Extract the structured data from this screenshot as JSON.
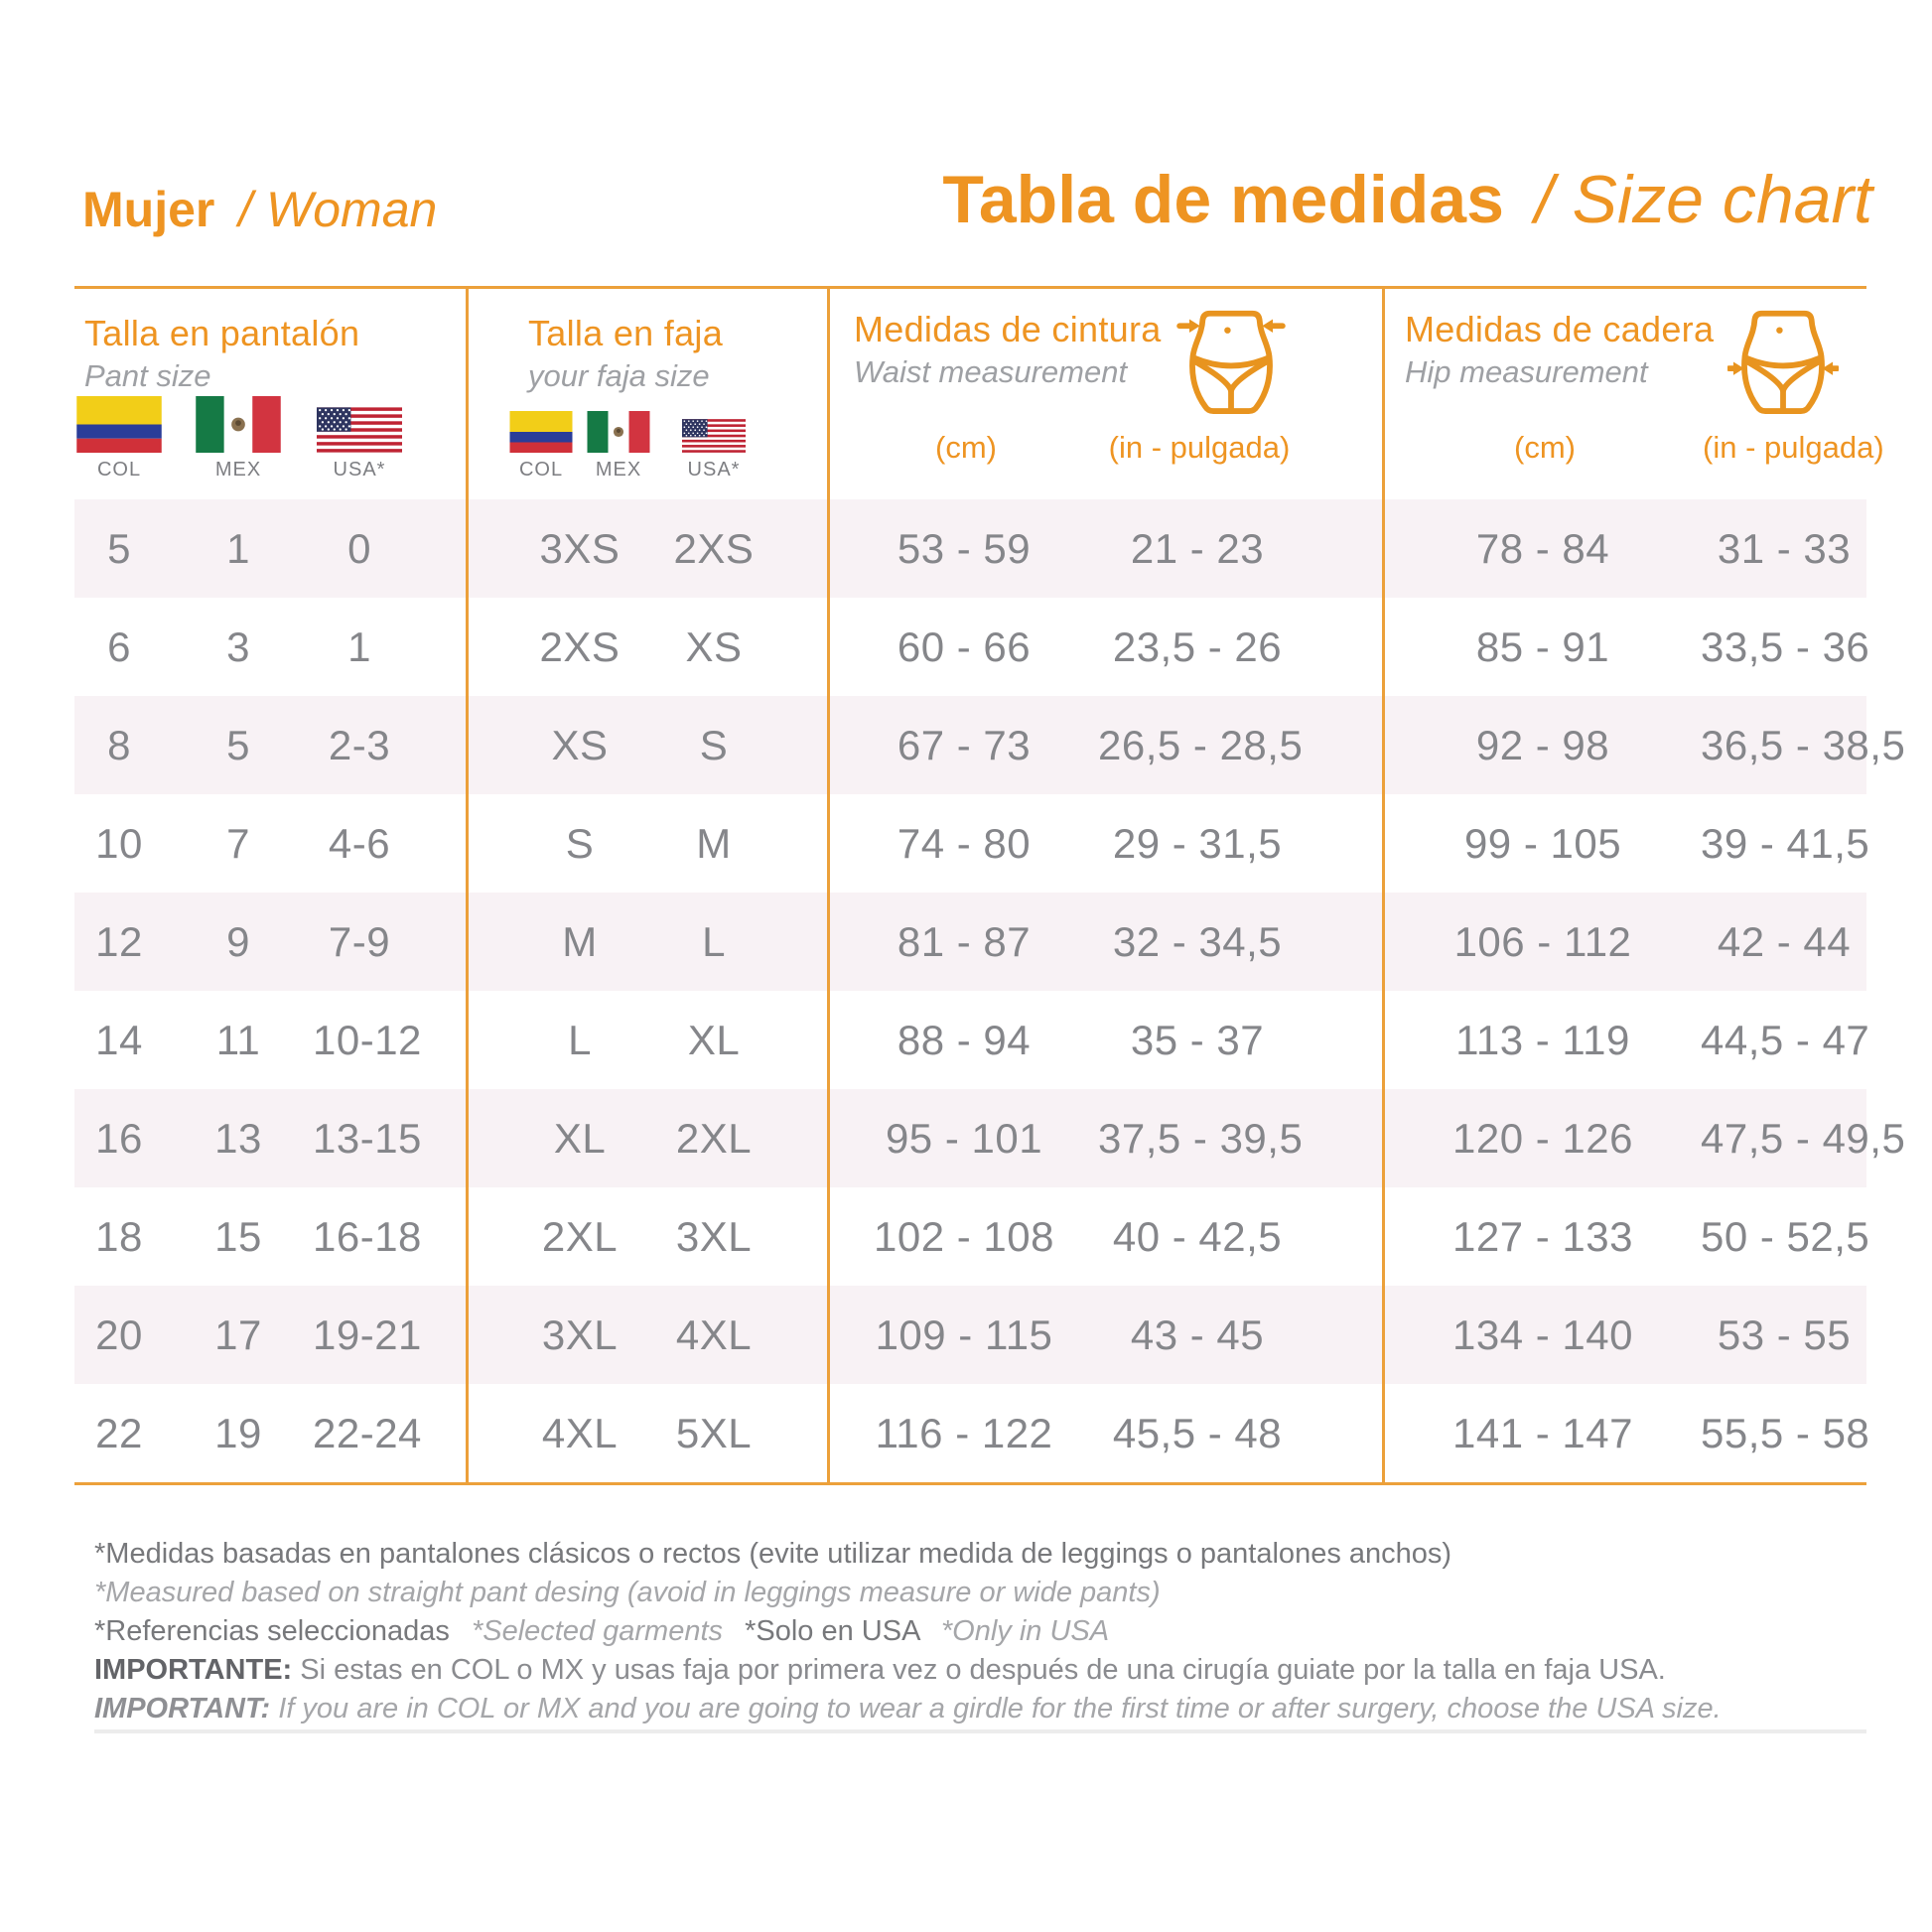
{
  "header": {
    "left_title": "Mujer",
    "left_title_en": "/ Woman",
    "main_title": "Tabla de medidas",
    "main_title_en": "/ Size chart"
  },
  "colors": {
    "accent_orange": "#EE9422",
    "divider_orange": "#ECA03A",
    "row_stripe_pink": "#F8F2F5",
    "data_text_gray": "#85868A"
  },
  "table": {
    "groups": [
      {
        "title": "Talla en pantalón",
        "subtitle": "Pant size",
        "flags": [
          "COL",
          "MEX",
          "USA*"
        ]
      },
      {
        "title": "Talla en faja",
        "subtitle": "your faja size",
        "flags": [
          "COL",
          "MEX",
          "USA*"
        ]
      },
      {
        "title": "Medidas de cintura",
        "subtitle": "Waist measurement",
        "units": [
          "(cm)",
          "(in - pulgada)"
        ]
      },
      {
        "title": "Medidas de cadera",
        "subtitle": "Hip measurement",
        "units": [
          "(cm)",
          "(in - pulgada)"
        ]
      }
    ],
    "rows": [
      {
        "pant": [
          "5",
          "1",
          "0"
        ],
        "faja": [
          "3XS",
          "2XS"
        ],
        "waist": [
          "53 - 59",
          "21 - 23"
        ],
        "hip": [
          "78 - 84",
          "31 - 33"
        ]
      },
      {
        "pant": [
          "6",
          "3",
          "1"
        ],
        "faja": [
          "2XS",
          "XS"
        ],
        "waist": [
          "60 - 66",
          "23,5 - 26"
        ],
        "hip": [
          "85 - 91",
          "33,5 - 36"
        ]
      },
      {
        "pant": [
          "8",
          "5",
          "2-3"
        ],
        "faja": [
          "XS",
          "S"
        ],
        "waist": [
          "67 - 73",
          "26,5 - 28,5"
        ],
        "hip": [
          "92 - 98",
          "36,5 - 38,5"
        ]
      },
      {
        "pant": [
          "10",
          "7",
          "4-6"
        ],
        "faja": [
          "S",
          "M"
        ],
        "waist": [
          "74 - 80",
          "29 - 31,5"
        ],
        "hip": [
          "99 - 105",
          "39 - 41,5"
        ]
      },
      {
        "pant": [
          "12",
          "9",
          "7-9"
        ],
        "faja": [
          "M",
          "L"
        ],
        "waist": [
          "81 - 87",
          "32 - 34,5"
        ],
        "hip": [
          "106 - 112",
          "42 - 44"
        ]
      },
      {
        "pant": [
          "14",
          "11",
          "10-12"
        ],
        "faja": [
          "L",
          "XL"
        ],
        "waist": [
          "88 - 94",
          "35 - 37"
        ],
        "hip": [
          "113 - 119",
          "44,5 - 47"
        ]
      },
      {
        "pant": [
          "16",
          "13",
          "13-15"
        ],
        "faja": [
          "XL",
          "2XL"
        ],
        "waist": [
          "95 - 101",
          "37,5 - 39,5"
        ],
        "hip": [
          "120 - 126",
          "47,5 - 49,5"
        ]
      },
      {
        "pant": [
          "18",
          "15",
          "16-18"
        ],
        "faja": [
          "2XL",
          "3XL"
        ],
        "waist": [
          "102 - 108",
          "40 - 42,5"
        ],
        "hip": [
          "127 - 133",
          "50 - 52,5"
        ]
      },
      {
        "pant": [
          "20",
          "17",
          "19-21"
        ],
        "faja": [
          "3XL",
          "4XL"
        ],
        "waist": [
          "109 - 115",
          "43 - 45"
        ],
        "hip": [
          "134 - 140",
          "53 - 55"
        ]
      },
      {
        "pant": [
          "22",
          "19",
          "22-24"
        ],
        "faja": [
          "4XL",
          "5XL"
        ],
        "waist": [
          "116 - 122",
          "45,5 - 48"
        ],
        "hip": [
          "141 - 147",
          "55,5 - 58"
        ]
      }
    ]
  },
  "footnotes": {
    "note1": "*Medidas basadas en pantalones clásicos o rectos (evite utilizar medida de leggings o pantalones anchos)",
    "note2": "*Measured based on straight pant desing (avoid in leggings measure or wide pants)",
    "note3_a": "*Referencias seleccionadas",
    "note3_b": "*Selected garments",
    "note3_c": "*Solo en USA",
    "note3_d": "*Only in USA",
    "important_es_label": "IMPORTANTE:",
    "important_es_text": " Si estas en COL o MX y usas faja por primera vez o después de una cirugía guiate por la talla en faja USA.",
    "important_en_label": "IMPORTANT:",
    "important_en_text": " If you are in COL or MX and you are going to wear a girdle for the first time or after surgery, choose the USA size."
  }
}
